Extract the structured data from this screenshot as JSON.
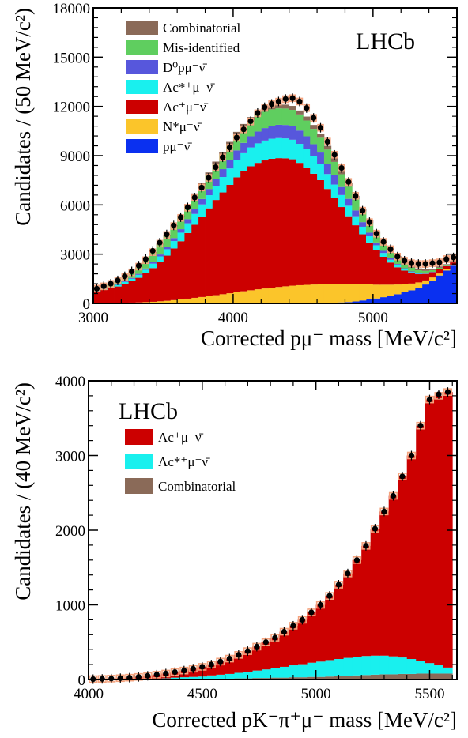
{
  "chart_data": [
    {
      "type": "area",
      "brand": "LHCb",
      "xlabel": "Corrected pμ⁻ mass [MeV/c²]",
      "ylabel": "Candidates / (50 MeV/c²)",
      "xlim": [
        3000,
        5600
      ],
      "ylim": [
        0,
        18000
      ],
      "x_ticks": [
        3000,
        4000,
        5000
      ],
      "y_ticks": [
        0,
        3000,
        6000,
        9000,
        12000,
        15000,
        18000
      ],
      "bin_width": 50,
      "legend": [
        "Combinatorial",
        "Mis-identified",
        "D⁰pμ⁻ν̄",
        "Λc*⁺μ⁻ν̄",
        "Λc⁺μ⁻ν̄",
        "N*μ⁻ν̄",
        "pμ⁻ν̄"
      ],
      "colors": {
        "Combinatorial": "#8a6a58",
        "Mis-identified": "#5fce5f",
        "D0": "#5757dc",
        "LcStar": "#19f0ee",
        "Lc": "#cc0000",
        "Nstar": "#fbc52a",
        "pmunu": "#0a30f0",
        "fit_box": "#f4a37e"
      },
      "series_stack_order_bottom_to_top": [
        "pμ⁻ν̄",
        "N*μ⁻ν̄",
        "Λc⁺μ⁻ν̄",
        "Λc*⁺μ⁻ν̄",
        "D⁰pμ⁻ν̄",
        "Mis-identified",
        "Combinatorial"
      ],
      "x": [
        3025,
        3075,
        3125,
        3175,
        3225,
        3275,
        3325,
        3375,
        3425,
        3475,
        3525,
        3575,
        3625,
        3675,
        3725,
        3775,
        3825,
        3875,
        3925,
        3975,
        4025,
        4075,
        4125,
        4175,
        4225,
        4275,
        4325,
        4375,
        4425,
        4475,
        4525,
        4575,
        4625,
        4675,
        4725,
        4775,
        4825,
        4875,
        4925,
        4975,
        5025,
        5075,
        5125,
        5175,
        5225,
        5275,
        5325,
        5375,
        5425,
        5475,
        5525,
        5575
      ],
      "data": [
        900,
        1050,
        1200,
        1400,
        1650,
        1950,
        2300,
        2700,
        3200,
        3700,
        4200,
        4750,
        5250,
        5850,
        6450,
        7050,
        7650,
        8300,
        8900,
        9500,
        10100,
        10600,
        11100,
        11600,
        11950,
        12150,
        12300,
        12450,
        12500,
        12300,
        11900,
        11300,
        10700,
        9850,
        9050,
        8250,
        7400,
        6550,
        5650,
        4950,
        4250,
        3750,
        3300,
        2850,
        2600,
        2450,
        2400,
        2400,
        2450,
        2500,
        2700,
        2800
      ],
      "series": [
        {
          "name": "pμ⁻ν̄",
          "values": [
            0,
            0,
            0,
            0,
            0,
            0,
            0,
            0,
            0,
            0,
            0,
            0,
            0,
            0,
            0,
            0,
            0,
            0,
            0,
            0,
            0,
            0,
            0,
            0,
            0,
            0,
            0,
            0,
            0,
            0,
            0,
            0,
            0,
            20,
            40,
            60,
            80,
            120,
            180,
            240,
            300,
            380,
            460,
            560,
            680,
            800,
            950,
            1150,
            1400,
            1700,
            2000,
            2300
          ]
        },
        {
          "name": "N*μ⁻ν̄",
          "values": [
            10,
            20,
            20,
            30,
            40,
            50,
            60,
            80,
            100,
            130,
            160,
            200,
            240,
            290,
            340,
            390,
            440,
            500,
            560,
            620,
            680,
            740,
            800,
            860,
            910,
            960,
            1000,
            1040,
            1080,
            1110,
            1130,
            1150,
            1160,
            1150,
            1130,
            1110,
            1080,
            1040,
            980,
            920,
            840,
            760,
            680,
            590,
            500,
            410,
            330,
            250,
            180,
            120,
            70,
            40
          ]
        },
        {
          "name": "Λc⁺μ⁻ν̄",
          "values": [
            700,
            800,
            900,
            1000,
            1150,
            1300,
            1500,
            1750,
            2050,
            2400,
            2750,
            3150,
            3550,
            4000,
            4450,
            4900,
            5350,
            5800,
            6200,
            6600,
            7000,
            7300,
            7550,
            7700,
            7800,
            7850,
            7850,
            7800,
            7700,
            7450,
            7150,
            6750,
            6350,
            5800,
            5250,
            4700,
            4150,
            3600,
            3050,
            2550,
            2100,
            1700,
            1350,
            1050,
            820,
            650,
            500,
            400,
            320,
            260,
            200,
            160
          ]
        },
        {
          "name": "Λc*⁺μ⁻ν̄",
          "values": [
            50,
            60,
            80,
            100,
            120,
            150,
            180,
            220,
            270,
            330,
            390,
            450,
            520,
            590,
            660,
            740,
            800,
            870,
            940,
            1000,
            1060,
            1110,
            1150,
            1190,
            1210,
            1220,
            1220,
            1210,
            1190,
            1160,
            1120,
            1060,
            990,
            910,
            820,
            730,
            640,
            550,
            460,
            380,
            300,
            230,
            170,
            120,
            80,
            50,
            30,
            20,
            10,
            10,
            5,
            5
          ]
        },
        {
          "name": "D⁰pμ⁻ν̄",
          "values": [
            10,
            20,
            20,
            30,
            40,
            50,
            60,
            80,
            100,
            120,
            150,
            180,
            210,
            250,
            290,
            330,
            380,
            430,
            480,
            530,
            580,
            630,
            680,
            720,
            760,
            790,
            810,
            820,
            820,
            810,
            780,
            740,
            690,
            630,
            560,
            490,
            420,
            350,
            280,
            220,
            170,
            130,
            100,
            80,
            60,
            40,
            30,
            20,
            15,
            10,
            5,
            5
          ]
        },
        {
          "name": "Mis-identified",
          "values": [
            100,
            120,
            150,
            200,
            250,
            300,
            400,
            450,
            550,
            600,
            650,
            700,
            750,
            800,
            850,
            850,
            880,
            900,
            900,
            920,
            950,
            960,
            970,
            990,
            1000,
            1000,
            1000,
            1000,
            1000,
            980,
            960,
            930,
            900,
            860,
            820,
            780,
            740,
            690,
            640,
            580,
            520,
            460,
            400,
            340,
            280,
            230,
            180,
            140,
            100,
            70,
            40,
            20
          ]
        },
        {
          "name": "Combinatorial",
          "values": [
            20,
            20,
            20,
            30,
            30,
            40,
            40,
            50,
            50,
            60,
            70,
            80,
            90,
            100,
            110,
            120,
            130,
            140,
            160,
            170,
            180,
            190,
            200,
            210,
            220,
            230,
            230,
            240,
            240,
            240,
            240,
            240,
            240,
            230,
            230,
            220,
            210,
            200,
            190,
            180,
            170,
            160,
            150,
            140,
            130,
            120,
            110,
            100,
            90,
            80,
            70,
            60
          ]
        }
      ],
      "fit_total": [
        900,
        1040,
        1190,
        1390,
        1630,
        1890,
        2240,
        2630,
        3120,
        3640,
        4170,
        4710,
        5210,
        5830,
        6460,
        7060,
        7650,
        8290,
        8890,
        9480,
        10090,
        10600,
        11080,
        11580,
        11920,
        12140,
        12290,
        12440,
        12500,
        12300,
        11900,
        11300,
        10700,
        9860,
        9060,
        8250,
        7400,
        6550,
        5650,
        4950,
        4250,
        3750,
        3300,
        2850,
        2600,
        2450,
        2400,
        2400,
        2450,
        2500,
        2700,
        2800
      ]
    },
    {
      "type": "area",
      "brand": "LHCb",
      "xlabel": "Corrected pK⁻π⁺μ⁻ mass [MeV/c²]",
      "ylabel": "Candidates / (40 MeV/c²)",
      "xlim": [
        4000,
        5620
      ],
      "ylim": [
        0,
        4000
      ],
      "x_ticks": [
        4000,
        4500,
        5000,
        5500
      ],
      "y_ticks": [
        0,
        1000,
        2000,
        3000,
        4000
      ],
      "bin_width": 40,
      "legend": [
        "Λc⁺μ⁻ν̄",
        "Λc*⁺μ⁻ν̄",
        "Combinatorial"
      ],
      "colors": {
        "Lc": "#cc0000",
        "LcStar": "#19f0ee",
        "Combinatorial": "#8a6a58",
        "fit_box": "#f4a37e"
      },
      "series_stack_order_bottom_to_top": [
        "Combinatorial",
        "Λc*⁺μ⁻ν̄",
        "Λc⁺μ⁻ν̄"
      ],
      "x": [
        4020,
        4060,
        4100,
        4140,
        4180,
        4220,
        4260,
        4300,
        4340,
        4380,
        4420,
        4460,
        4500,
        4540,
        4580,
        4620,
        4660,
        4700,
        4740,
        4780,
        4820,
        4860,
        4900,
        4940,
        4980,
        5020,
        5060,
        5100,
        5140,
        5180,
        5220,
        5260,
        5300,
        5340,
        5380,
        5420,
        5460,
        5500,
        5540,
        5580
      ],
      "data": [
        5,
        8,
        12,
        18,
        25,
        35,
        50,
        65,
        80,
        100,
        120,
        145,
        170,
        200,
        240,
        280,
        330,
        380,
        440,
        500,
        560,
        640,
        720,
        800,
        900,
        1000,
        1120,
        1270,
        1420,
        1600,
        1790,
        2020,
        2250,
        2460,
        2720,
        3000,
        3400,
        3750,
        3820,
        3850
      ],
      "series": [
        {
          "name": "Combinatorial",
          "values": [
            0,
            0,
            0,
            0,
            0,
            0,
            0,
            0,
            0,
            5,
            5,
            5,
            5,
            10,
            10,
            10,
            15,
            15,
            20,
            20,
            25,
            25,
            30,
            30,
            35,
            35,
            40,
            45,
            50,
            55,
            60,
            65,
            70,
            70,
            75,
            75,
            80,
            80,
            80,
            80
          ]
        },
        {
          "name": "Λc*⁺μ⁻ν̄",
          "values": [
            0,
            0,
            0,
            0,
            5,
            5,
            10,
            10,
            15,
            20,
            25,
            30,
            35,
            45,
            55,
            65,
            75,
            90,
            100,
            115,
            130,
            145,
            160,
            175,
            190,
            205,
            220,
            230,
            240,
            250,
            255,
            255,
            250,
            240,
            220,
            200,
            170,
            140,
            110,
            80
          ]
        },
        {
          "name": "Λc⁺μ⁻ν̄",
          "values": [
            5,
            8,
            12,
            18,
            20,
            30,
            40,
            55,
            65,
            75,
            90,
            110,
            130,
            145,
            175,
            205,
            240,
            275,
            320,
            365,
            405,
            470,
            530,
            595,
            675,
            760,
            860,
            995,
            1130,
            1295,
            1475,
            1700,
            1930,
            2150,
            2425,
            2725,
            3150,
            3530,
            3610,
            3690
          ]
        }
      ],
      "fit_total": [
        5,
        8,
        12,
        18,
        25,
        35,
        50,
        65,
        80,
        100,
        120,
        145,
        170,
        200,
        240,
        280,
        330,
        380,
        440,
        500,
        560,
        640,
        720,
        800,
        900,
        1000,
        1120,
        1270,
        1420,
        1600,
        1790,
        2020,
        2250,
        2460,
        2720,
        3000,
        3400,
        3750,
        3800,
        3850
      ]
    }
  ]
}
